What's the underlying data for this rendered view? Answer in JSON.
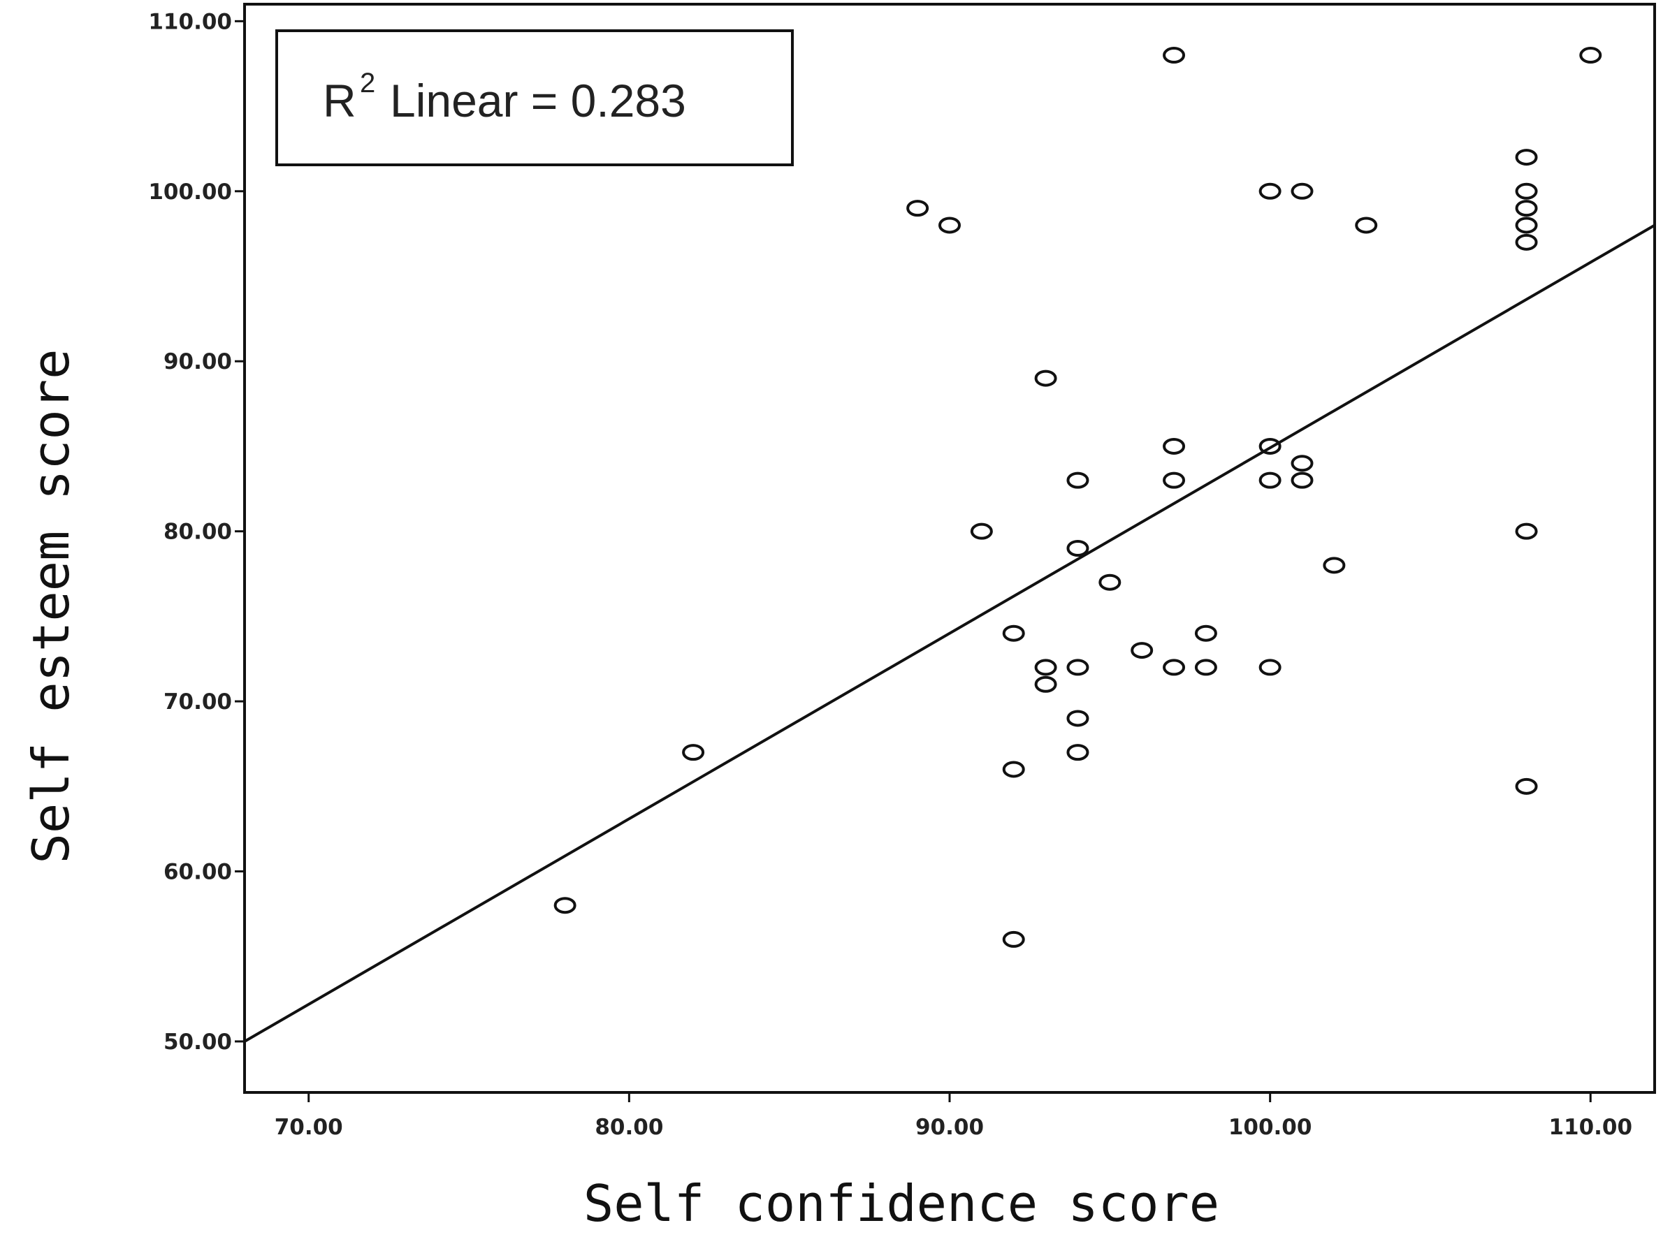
{
  "chart_data": {
    "type": "scatter",
    "title": "",
    "xlabel": "Self confidence score",
    "ylabel": "Self esteem score",
    "xlim": [
      68,
      112
    ],
    "ylim": [
      47,
      111
    ],
    "x_ticks": [
      "70.00",
      "80.00",
      "90.00",
      "100.00",
      "110.00"
    ],
    "y_ticks": [
      "50.00",
      "60.00",
      "70.00",
      "80.00",
      "90.00",
      "100.00",
      "110.00"
    ],
    "fit_label": {
      "prefix": "R",
      "sup": "2",
      "text": "Linear = 0.283"
    },
    "fit_line": {
      "type": "linear",
      "points": [
        [
          68,
          50
        ],
        [
          112,
          98
        ]
      ]
    },
    "colors": {
      "marker": "#111111",
      "line": "#111111",
      "background": "#ffffff"
    },
    "grid": false,
    "points": [
      {
        "x": 78,
        "y": 58
      },
      {
        "x": 82,
        "y": 67
      },
      {
        "x": 89,
        "y": 99
      },
      {
        "x": 90,
        "y": 98
      },
      {
        "x": 91,
        "y": 80
      },
      {
        "x": 92,
        "y": 74
      },
      {
        "x": 92,
        "y": 66
      },
      {
        "x": 92,
        "y": 56
      },
      {
        "x": 93,
        "y": 89
      },
      {
        "x": 93,
        "y": 72
      },
      {
        "x": 93,
        "y": 71
      },
      {
        "x": 94,
        "y": 83
      },
      {
        "x": 94,
        "y": 79
      },
      {
        "x": 94,
        "y": 72
      },
      {
        "x": 94,
        "y": 69
      },
      {
        "x": 94,
        "y": 67
      },
      {
        "x": 95,
        "y": 77
      },
      {
        "x": 96,
        "y": 73
      },
      {
        "x": 97,
        "y": 108
      },
      {
        "x": 97,
        "y": 85
      },
      {
        "x": 97,
        "y": 83
      },
      {
        "x": 97,
        "y": 72
      },
      {
        "x": 98,
        "y": 74
      },
      {
        "x": 98,
        "y": 72
      },
      {
        "x": 100,
        "y": 100
      },
      {
        "x": 100,
        "y": 85
      },
      {
        "x": 100,
        "y": 83
      },
      {
        "x": 100,
        "y": 72
      },
      {
        "x": 101,
        "y": 100
      },
      {
        "x": 101,
        "y": 84
      },
      {
        "x": 101,
        "y": 83
      },
      {
        "x": 102,
        "y": 78
      },
      {
        "x": 103,
        "y": 98
      },
      {
        "x": 108,
        "y": 102
      },
      {
        "x": 108,
        "y": 100
      },
      {
        "x": 108,
        "y": 99
      },
      {
        "x": 108,
        "y": 98
      },
      {
        "x": 108,
        "y": 97
      },
      {
        "x": 108,
        "y": 80
      },
      {
        "x": 108,
        "y": 65
      },
      {
        "x": 110,
        "y": 108
      }
    ]
  }
}
